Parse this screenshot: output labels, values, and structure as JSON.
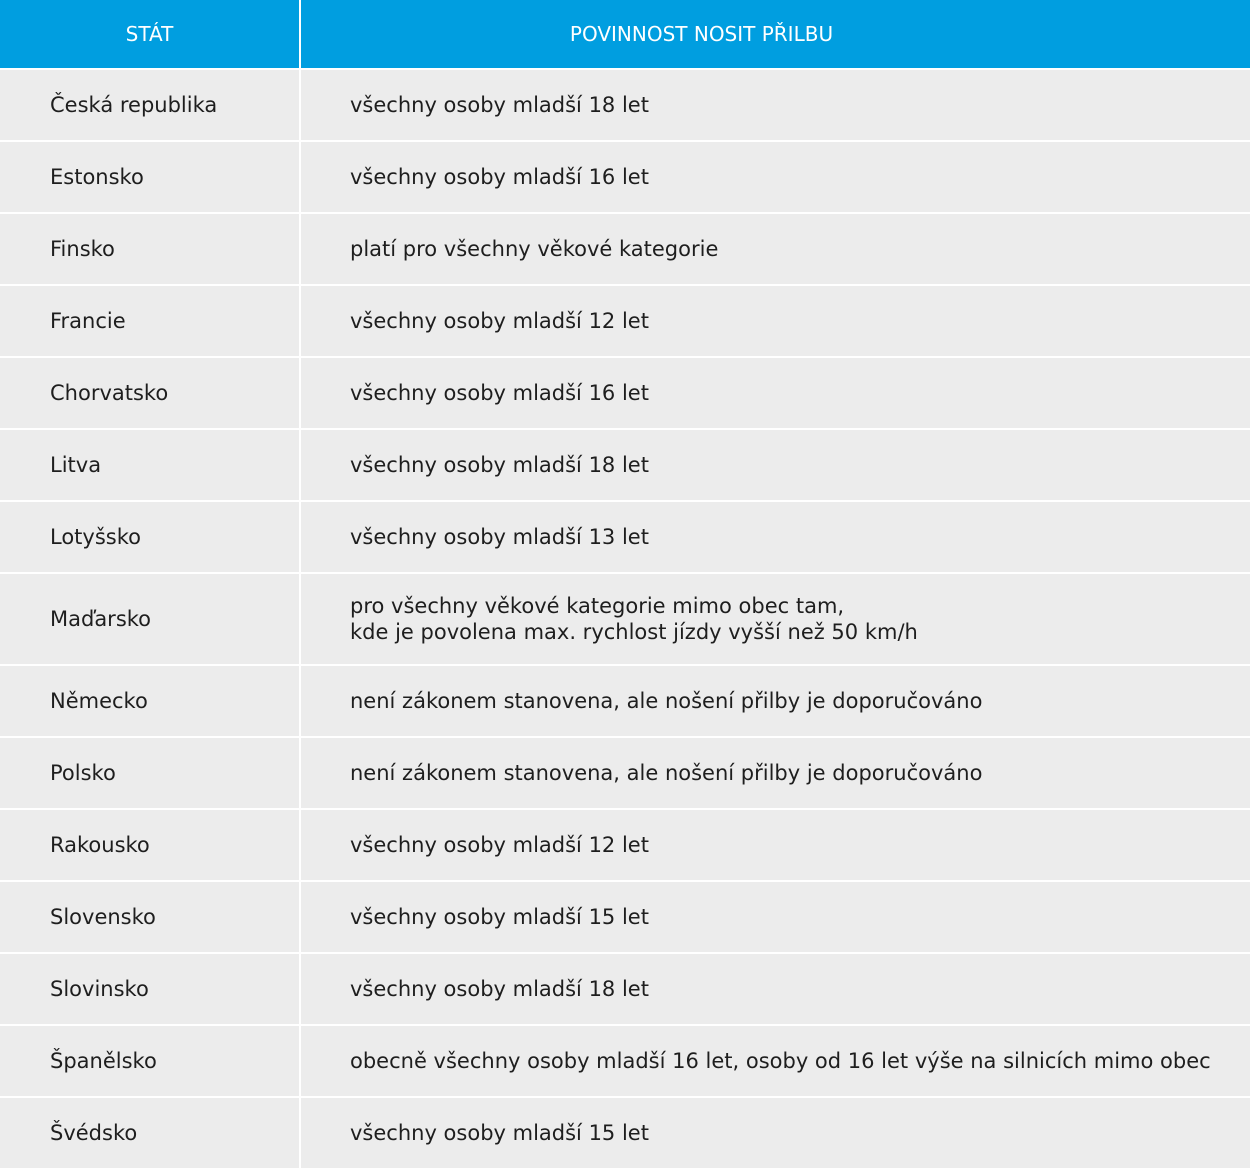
{
  "table": {
    "headers": {
      "country": "STÁT",
      "rule": "POVINNOST NOSIT PŘILBU"
    },
    "rows": [
      {
        "country": "Česká republika",
        "rule": "všechny osoby mladší 18 let"
      },
      {
        "country": "Estonsko",
        "rule": "všechny osoby mladší 16 let"
      },
      {
        "country": "Finsko",
        "rule": "platí pro všechny věkové kategorie"
      },
      {
        "country": "Francie",
        "rule": "všechny osoby mladší 12 let"
      },
      {
        "country": "Chorvatsko",
        "rule": "všechny osoby mladší 16 let"
      },
      {
        "country": "Litva",
        "rule": "všechny osoby mladší 18 let"
      },
      {
        "country": "Lotyšsko",
        "rule": "všechny osoby mladší 13 let"
      },
      {
        "country": "Maďarsko",
        "rule": "pro všechny věkové kategorie mimo obec tam,\nkde je povolena max. rychlost jízdy vyšší než 50 km/h"
      },
      {
        "country": "Německo",
        "rule": "není zákonem stanovena, ale nošení přilby je doporučováno"
      },
      {
        "country": "Polsko",
        "rule": "není zákonem stanovena, ale nošení přilby je doporučováno"
      },
      {
        "country": "Rakousko",
        "rule": "všechny osoby mladší 12 let"
      },
      {
        "country": "Slovensko",
        "rule": "všechny osoby mladší 15 let"
      },
      {
        "country": "Slovinsko",
        "rule": "všechny osoby mladší 18 let"
      },
      {
        "country": "Španělsko",
        "rule": "obecně všechny osoby mladší 16 let, osoby od 16 let výše na silnicích mimo obec"
      },
      {
        "country": "Švédsko",
        "rule": "všechny osoby mladší 15 let"
      }
    ]
  }
}
